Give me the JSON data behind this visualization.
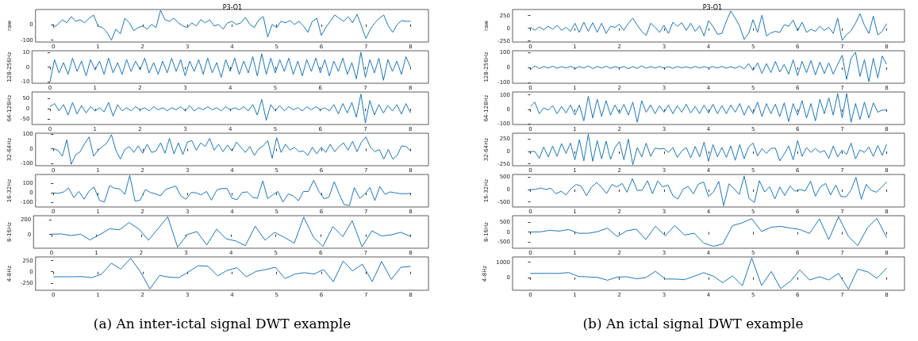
{
  "chart_data": [
    {
      "type": "line",
      "title": "P3-O1",
      "ylabel": "raw",
      "color": "#1f77b4",
      "xlim": [
        -0.4,
        8.4
      ],
      "xticks": [
        0,
        1,
        2,
        3,
        4,
        5,
        6,
        7,
        8
      ],
      "ylim": [
        -112,
        95
      ],
      "yticks": [
        -100,
        0
      ],
      "x": [
        0,
        0.1,
        0.2,
        0.3,
        0.4,
        0.5,
        0.6,
        0.7,
        0.8,
        0.9,
        1,
        1.1,
        1.2,
        1.3,
        1.4,
        1.5,
        1.6,
        1.7,
        1.8,
        1.9,
        2,
        2.1,
        2.2,
        2.3,
        2.4,
        2.5,
        2.6,
        2.7,
        2.8,
        2.9,
        3,
        3.1,
        3.2,
        3.3,
        3.4,
        3.5,
        3.6,
        3.7,
        3.8,
        3.9,
        4,
        4.1,
        4.2,
        4.3,
        4.4,
        4.5,
        4.6,
        4.7,
        4.8,
        4.9,
        5,
        5.1,
        5.2,
        5.3,
        5.4,
        5.5,
        5.6,
        5.7,
        5.8,
        5.9,
        6,
        6.1,
        6.2,
        6.3,
        6.4,
        6.5,
        6.6,
        6.7,
        6.8,
        6.9,
        7,
        7.1,
        7.2,
        7.3,
        7.4,
        7.5,
        7.6,
        7.7,
        7.8,
        7.9,
        8
      ],
      "values": [
        -20,
        0,
        30,
        10,
        50,
        20,
        30,
        10,
        40,
        60,
        -10,
        -20,
        -50,
        -100,
        -30,
        -60,
        40,
        10,
        -40,
        -20,
        -10,
        -30,
        0,
        -20,
        90,
        30,
        20,
        40,
        10,
        -10,
        -20,
        10,
        -10,
        30,
        10,
        30,
        -10,
        0,
        -30,
        10,
        20,
        0,
        10,
        45,
        0,
        -20,
        30,
        50,
        -80,
        0,
        -20,
        20,
        10,
        25,
        0,
        20,
        -10,
        -50,
        20,
        40,
        -70,
        -20,
        20,
        60,
        40,
        20,
        50,
        10,
        65,
        -10,
        -90,
        -30,
        10,
        40,
        60,
        -10,
        -50,
        0,
        25,
        20,
        20
      ]
    },
    {
      "type": "line",
      "ylabel": "128-256Hz",
      "color": "#1f77b4",
      "xlim": [
        -0.4,
        8.4
      ],
      "xticks": [
        0,
        1,
        2,
        3,
        4,
        5,
        6,
        7,
        8
      ],
      "ylim": [
        -11,
        11
      ],
      "yticks": [
        -10,
        0,
        10
      ],
      "x": [
        0,
        0.1,
        0.2,
        0.3,
        0.4,
        0.5,
        0.6,
        0.7,
        0.8,
        0.9,
        1,
        1.1,
        1.2,
        1.3,
        1.4,
        1.5,
        1.6,
        1.7,
        1.8,
        1.9,
        2,
        2.1,
        2.2,
        2.3,
        2.4,
        2.5,
        2.6,
        2.7,
        2.8,
        2.9,
        3,
        3.1,
        3.2,
        3.3,
        3.4,
        3.5,
        3.6,
        3.7,
        3.8,
        3.9,
        4,
        4.1,
        4.2,
        4.3,
        4.4,
        4.5,
        4.6,
        4.7,
        4.8,
        4.9,
        5,
        5.1,
        5.2,
        5.3,
        5.4,
        5.5,
        5.6,
        5.7,
        5.8,
        5.9,
        6,
        6.1,
        6.2,
        6.3,
        6.4,
        6.5,
        6.6,
        6.7,
        6.8,
        6.9,
        7,
        7.1,
        7.2,
        7.3,
        7.4,
        7.5,
        7.6,
        7.7,
        7.8,
        7.9,
        8
      ],
      "values": [
        -10,
        5,
        -4,
        3,
        -5,
        6,
        -3,
        4,
        -6,
        5,
        -2,
        4,
        -5,
        6,
        -4,
        3,
        -5,
        5,
        -3,
        4,
        -2,
        6,
        -4,
        3,
        -5,
        4,
        -4,
        6,
        -3,
        5,
        -6,
        4,
        -3,
        5,
        -5,
        6,
        -4,
        3,
        -7,
        5,
        -3,
        6,
        -5,
        4,
        -4,
        7,
        -6,
        9,
        -5,
        6,
        -4,
        5,
        -3,
        6,
        -5,
        4,
        -6,
        5,
        -3,
        6,
        -4,
        5,
        -6,
        4,
        -3,
        6,
        -5,
        3,
        -8,
        10,
        -7,
        5,
        -4,
        6,
        -9,
        5,
        -3,
        4,
        -5,
        7,
        0
      ]
    },
    {
      "type": "line",
      "ylabel": "64-128Hz",
      "color": "#1f77b4",
      "xlim": [
        -0.4,
        8.4
      ],
      "xticks": [
        0,
        1,
        2,
        3,
        4,
        5,
        6,
        7,
        8
      ],
      "ylim": [
        -75,
        80
      ],
      "yticks": [
        -50,
        0,
        50
      ],
      "x": [
        0,
        0.1,
        0.2,
        0.3,
        0.4,
        0.5,
        0.6,
        0.7,
        0.8,
        0.9,
        1,
        1.1,
        1.2,
        1.3,
        1.4,
        1.5,
        1.6,
        1.7,
        1.8,
        1.9,
        2,
        2.1,
        2.2,
        2.3,
        2.4,
        2.5,
        2.6,
        2.7,
        2.8,
        2.9,
        3,
        3.1,
        3.2,
        3.3,
        3.4,
        3.5,
        3.6,
        3.7,
        3.8,
        3.9,
        4,
        4.1,
        4.2,
        4.3,
        4.4,
        4.5,
        4.6,
        4.7,
        4.8,
        4.9,
        5,
        5.1,
        5.2,
        5.3,
        5.4,
        5.5,
        5.6,
        5.7,
        5.8,
        5.9,
        6,
        6.1,
        6.2,
        6.3,
        6.4,
        6.5,
        6.6,
        6.7,
        6.8,
        6.9,
        7,
        7.1,
        7.2,
        7.3,
        7.4,
        7.5,
        7.6,
        7.7,
        7.8,
        7.9,
        8
      ],
      "values": [
        10,
        25,
        -10,
        20,
        -30,
        30,
        -25,
        15,
        -20,
        10,
        -10,
        5,
        -15,
        30,
        -35,
        20,
        -10,
        5,
        -10,
        10,
        -5,
        5,
        -10,
        10,
        -5,
        5,
        -10,
        5,
        -5,
        10,
        -10,
        15,
        -10,
        5,
        -5,
        10,
        -5,
        5,
        -10,
        10,
        -5,
        5,
        -5,
        10,
        -10,
        20,
        -30,
        45,
        -55,
        20,
        -10,
        15,
        -10,
        10,
        -5,
        5,
        -10,
        10,
        -5,
        10,
        -5,
        5,
        -10,
        20,
        -25,
        25,
        -20,
        30,
        -40,
        70,
        -68,
        40,
        -30,
        20,
        -20,
        15,
        -10,
        20,
        -25,
        25,
        -20
      ]
    },
    {
      "type": "line",
      "ylabel": "32-64Hz",
      "color": "#1f77b4",
      "xlim": [
        -0.4,
        8.4
      ],
      "xticks": [
        0,
        1,
        2,
        3,
        4,
        5,
        6,
        7,
        8
      ],
      "ylim": [
        -115,
        105
      ],
      "yticks": [
        -100,
        0,
        100
      ],
      "x": [
        0,
        0.1,
        0.2,
        0.3,
        0.4,
        0.5,
        0.6,
        0.7,
        0.8,
        0.9,
        1,
        1.1,
        1.2,
        1.3,
        1.4,
        1.5,
        1.6,
        1.7,
        1.8,
        1.9,
        2,
        2.1,
        2.2,
        2.3,
        2.4,
        2.5,
        2.6,
        2.7,
        2.8,
        2.9,
        3,
        3.1,
        3.2,
        3.3,
        3.4,
        3.5,
        3.6,
        3.7,
        3.8,
        3.9,
        4,
        4.1,
        4.2,
        4.3,
        4.4,
        4.5,
        4.6,
        4.7,
        4.8,
        4.9,
        5,
        5.1,
        5.2,
        5.3,
        5.4,
        5.5,
        5.6,
        5.7,
        5.8,
        5.9,
        6,
        6.1,
        6.2,
        6.3,
        6.4,
        6.5,
        6.6,
        6.7,
        6.8,
        6.9,
        7,
        7.1,
        7.2,
        7.3,
        7.4,
        7.5,
        7.6,
        7.7,
        7.8,
        7.9,
        8
      ],
      "values": [
        0,
        -10,
        -50,
        60,
        -105,
        -40,
        -20,
        35,
        80,
        -50,
        -10,
        15,
        40,
        95,
        -10,
        -70,
        -5,
        15,
        -25,
        20,
        -30,
        30,
        -25,
        -15,
        40,
        -30,
        70,
        -35,
        40,
        -40,
        45,
        55,
        -10,
        40,
        15,
        70,
        -10,
        30,
        -20,
        25,
        -15,
        45,
        10,
        -25,
        15,
        -45,
        0,
        20,
        55,
        -65,
        75,
        -25,
        30,
        -10,
        10,
        -20,
        -15,
        -45,
        10,
        -35,
        10,
        -25,
        30,
        -20,
        15,
        40,
        -10,
        50,
        -20,
        45,
        80,
        10,
        -20,
        -5,
        -70,
        -5,
        -70,
        -45,
        20,
        15,
        -15
      ]
    },
    {
      "type": "line",
      "ylabel": "16-32Hz",
      "color": "#1f77b4",
      "xlim": [
        -0.4,
        8.4
      ],
      "xticks": [
        0,
        1,
        2,
        3,
        4,
        5,
        6,
        7,
        8
      ],
      "ylim": [
        -145,
        190
      ],
      "yticks": [
        -100,
        0,
        100
      ],
      "x": [
        0,
        0.11,
        0.23,
        0.34,
        0.46,
        0.57,
        0.69,
        0.8,
        0.91,
        1.03,
        1.14,
        1.26,
        1.37,
        1.49,
        1.6,
        1.71,
        1.83,
        1.94,
        2.06,
        2.17,
        2.29,
        2.4,
        2.51,
        2.63,
        2.74,
        2.86,
        2.97,
        3.09,
        3.2,
        3.31,
        3.43,
        3.54,
        3.66,
        3.77,
        3.89,
        4,
        4.11,
        4.23,
        4.34,
        4.46,
        4.57,
        4.69,
        4.8,
        4.91,
        5.03,
        5.14,
        5.26,
        5.37,
        5.49,
        5.6,
        5.71,
        5.83,
        5.94,
        6.06,
        6.17,
        6.29,
        6.4,
        6.51,
        6.63,
        6.74,
        6.86,
        6.97,
        7.09,
        7.2,
        7.31,
        7.43,
        7.54,
        7.66,
        7.77,
        7.89,
        8
      ],
      "values": [
        0,
        -5,
        10,
        50,
        -50,
        15,
        -65,
        20,
        60,
        -75,
        -95,
        75,
        48,
        40,
        -15,
        180,
        -85,
        -75,
        35,
        5,
        -10,
        -30,
        35,
        55,
        70,
        -35,
        -65,
        5,
        0,
        -20,
        15,
        -75,
        30,
        45,
        45,
        -55,
        -70,
        5,
        10,
        -45,
        -55,
        125,
        -60,
        -20,
        15,
        -95,
        -10,
        -30,
        -80,
        15,
        15,
        130,
        20,
        -60,
        -45,
        115,
        -10,
        -120,
        -130,
        55,
        -55,
        -15,
        55,
        -80,
        65,
        -15,
        10,
        0,
        -8,
        -8,
        -5
      ]
    },
    {
      "type": "line",
      "ylabel": "8-16Hz",
      "color": "#1f77b4",
      "xlim": [
        -0.4,
        8.4
      ],
      "xticks": [
        0,
        1,
        2,
        3,
        4,
        5,
        6,
        7,
        8
      ],
      "ylim": [
        -190,
        260
      ],
      "yticks": [
        0,
        200
      ],
      "x": [
        0,
        0.22,
        0.43,
        0.65,
        0.86,
        1.08,
        1.3,
        1.51,
        1.73,
        1.95,
        2.16,
        2.38,
        2.59,
        2.81,
        3.03,
        3.24,
        3.46,
        3.68,
        3.89,
        4.11,
        4.32,
        4.54,
        4.76,
        4.97,
        5.19,
        5.41,
        5.62,
        5.84,
        6.05,
        6.27,
        6.49,
        6.7,
        6.92,
        7.14,
        7.35,
        7.57,
        7.78,
        8
      ],
      "values": [
        5,
        8,
        -15,
        3,
        -75,
        0,
        80,
        65,
        165,
        75,
        -80,
        85,
        245,
        -175,
        0,
        40,
        -145,
        75,
        -60,
        -90,
        -155,
        115,
        -80,
        30,
        -40,
        -120,
        240,
        -40,
        -165,
        110,
        -30,
        190,
        -170,
        50,
        -20,
        -5,
        30,
        -25
      ]
    },
    {
      "type": "line",
      "ylabel": "4-8Hz",
      "color": "#1f77b4",
      "xlim": [
        -0.4,
        8.4
      ],
      "xticks": [
        0,
        1,
        2,
        3,
        4,
        5,
        6,
        7,
        8
      ],
      "ylim": [
        -410,
        330
      ],
      "yticks": [
        -250,
        0,
        250
      ],
      "annotations": [
        "(a) An inter-ictal signal DWT example"
      ],
      "x": [
        0,
        0.22,
        0.43,
        0.65,
        0.86,
        1.08,
        1.3,
        1.51,
        1.73,
        1.95,
        2.16,
        2.38,
        2.59,
        2.81,
        3.03,
        3.24,
        3.46,
        3.68,
        3.89,
        4.11,
        4.32,
        4.54,
        4.76,
        4.97,
        5.19,
        5.41,
        5.62,
        5.84,
        6.05,
        6.27,
        6.49,
        6.7,
        6.92,
        7.14,
        7.35,
        7.57,
        7.78,
        8
      ],
      "values": [
        -110,
        -110,
        -110,
        -108,
        -130,
        -50,
        190,
        60,
        300,
        0,
        -380,
        -80,
        -120,
        -130,
        0,
        135,
        125,
        -90,
        30,
        90,
        -110,
        10,
        50,
        100,
        -150,
        -50,
        -20,
        -50,
        50,
        -220,
        240,
        20,
        170,
        -220,
        230,
        -170,
        100,
        120
      ]
    },
    {
      "type": "line",
      "title": "P3-O1",
      "ylabel": "raw",
      "color": "#1f77b4",
      "xlim": [
        -0.4,
        8.4
      ],
      "xticks": [
        0,
        1,
        2,
        3,
        4,
        5,
        6,
        7,
        8
      ],
      "ylim": [
        -270,
        370
      ],
      "yticks": [
        -250,
        0,
        250
      ],
      "x": [
        0,
        0.1,
        0.2,
        0.3,
        0.4,
        0.5,
        0.6,
        0.7,
        0.8,
        0.9,
        1,
        1.1,
        1.2,
        1.3,
        1.4,
        1.5,
        1.6,
        1.7,
        1.8,
        1.9,
        2,
        2.1,
        2.2,
        2.3,
        2.4,
        2.5,
        2.6,
        2.7,
        2.8,
        2.9,
        3,
        3.1,
        3.2,
        3.3,
        3.4,
        3.5,
        3.6,
        3.7,
        3.8,
        3.9,
        4,
        4.1,
        4.2,
        4.3,
        4.4,
        4.5,
        4.6,
        4.7,
        4.8,
        4.9,
        5,
        5.1,
        5.2,
        5.3,
        5.4,
        5.5,
        5.6,
        5.7,
        5.8,
        5.9,
        6,
        6.1,
        6.2,
        6.3,
        6.4,
        6.5,
        6.6,
        6.7,
        6.8,
        6.9,
        7,
        7.1,
        7.2,
        7.3,
        7.4,
        7.5,
        7.6,
        7.7,
        7.8,
        7.9,
        8
      ],
      "values": [
        20,
        -40,
        30,
        -30,
        40,
        -20,
        60,
        -40,
        20,
        -60,
        100,
        -80,
        120,
        -60,
        110,
        -80,
        100,
        -100,
        40,
        20,
        80,
        -40,
        100,
        200,
        60,
        -60,
        -140,
        100,
        20,
        -80,
        60,
        -100,
        120,
        40,
        110,
        -40,
        100,
        -60,
        50,
        -150,
        150,
        40,
        -120,
        -100,
        140,
        340,
        200,
        40,
        -220,
        -100,
        170,
        -80,
        260,
        -150,
        -90,
        -60,
        -80,
        70,
        40,
        160,
        -50,
        120,
        -80,
        -20,
        -60,
        40,
        -40,
        20,
        -100,
        200,
        -240,
        -120,
        -50,
        100,
        290,
        60,
        -100,
        240,
        -130,
        -60,
        90
      ]
    },
    {
      "type": "line",
      "ylabel": "128-256Hz",
      "color": "#1f77b4",
      "xlim": [
        -0.4,
        8.4
      ],
      "xticks": [
        0,
        1,
        2,
        3,
        4,
        5,
        6,
        7,
        8
      ],
      "ylim": [
        -105,
        110
      ],
      "yticks": [
        -100,
        0,
        100
      ],
      "x": [
        0,
        0.1,
        0.2,
        0.3,
        0.4,
        0.5,
        0.6,
        0.7,
        0.8,
        0.9,
        1,
        1.1,
        1.2,
        1.3,
        1.4,
        1.5,
        1.6,
        1.7,
        1.8,
        1.9,
        2,
        2.1,
        2.2,
        2.3,
        2.4,
        2.5,
        2.6,
        2.7,
        2.8,
        2.9,
        3,
        3.1,
        3.2,
        3.3,
        3.4,
        3.5,
        3.6,
        3.7,
        3.8,
        3.9,
        4,
        4.1,
        4.2,
        4.3,
        4.4,
        4.5,
        4.6,
        4.7,
        4.8,
        4.9,
        5,
        5.1,
        5.2,
        5.3,
        5.4,
        5.5,
        5.6,
        5.7,
        5.8,
        5.9,
        6,
        6.1,
        6.2,
        6.3,
        6.4,
        6.5,
        6.6,
        6.7,
        6.8,
        6.9,
        7,
        7.1,
        7.2,
        7.3,
        7.4,
        7.5,
        7.6,
        7.7,
        7.8,
        7.9,
        8
      ],
      "values": [
        -15,
        10,
        -8,
        6,
        -5,
        8,
        -6,
        5,
        -4,
        7,
        -8,
        6,
        -5,
        10,
        -8,
        6,
        -5,
        8,
        -6,
        5,
        -4,
        6,
        -8,
        5,
        -7,
        10,
        -6,
        5,
        -4,
        6,
        -5,
        4,
        -6,
        5,
        -3,
        4,
        -5,
        6,
        -4,
        5,
        -3,
        5,
        -4,
        6,
        -5,
        4,
        -6,
        8,
        -10,
        25,
        -20,
        30,
        -40,
        25,
        -35,
        40,
        -30,
        20,
        -45,
        50,
        -55,
        40,
        -35,
        45,
        -50,
        35,
        -40,
        30,
        -45,
        20,
        80,
        -80,
        60,
        100,
        -60,
        50,
        -95,
        60,
        -70,
        75,
        20
      ]
    },
    {
      "type": "line",
      "ylabel": "64-128Hz",
      "color": "#1f77b4",
      "xlim": [
        -0.4,
        8.4
      ],
      "xticks": [
        0,
        1,
        2,
        3,
        4,
        5,
        6,
        7,
        8
      ],
      "ylim": [
        -105,
        120
      ],
      "yticks": [
        -100,
        0,
        100
      ],
      "x": [
        0,
        0.1,
        0.2,
        0.3,
        0.4,
        0.5,
        0.6,
        0.7,
        0.8,
        0.9,
        1,
        1.1,
        1.2,
        1.3,
        1.4,
        1.5,
        1.6,
        1.7,
        1.8,
        1.9,
        2,
        2.1,
        2.2,
        2.3,
        2.4,
        2.5,
        2.6,
        2.7,
        2.8,
        2.9,
        3,
        3.1,
        3.2,
        3.3,
        3.4,
        3.5,
        3.6,
        3.7,
        3.8,
        3.9,
        4,
        4.1,
        4.2,
        4.3,
        4.4,
        4.5,
        4.6,
        4.7,
        4.8,
        4.9,
        5,
        5.1,
        5.2,
        5.3,
        5.4,
        5.5,
        5.6,
        5.7,
        5.8,
        5.9,
        6,
        6.1,
        6.2,
        6.3,
        6.4,
        6.5,
        6.6,
        6.7,
        6.8,
        6.9,
        7,
        7.1,
        7.2,
        7.3,
        7.4,
        7.5,
        7.6,
        7.7,
        7.8,
        7.9,
        8
      ],
      "values": [
        20,
        50,
        -30,
        10,
        -5,
        25,
        -30,
        20,
        -25,
        30,
        -40,
        30,
        -80,
        90,
        -60,
        70,
        -50,
        60,
        -40,
        30,
        -30,
        35,
        -40,
        50,
        -90,
        60,
        -20,
        30,
        -30,
        25,
        -20,
        30,
        -30,
        25,
        -20,
        35,
        -25,
        20,
        -30,
        30,
        -25,
        35,
        -30,
        25,
        -30,
        30,
        -20,
        40,
        -40,
        25,
        -30,
        50,
        -50,
        40,
        -30,
        35,
        -50,
        45,
        -85,
        40,
        -40,
        60,
        -60,
        40,
        -80,
        70,
        -30,
        80,
        -40,
        110,
        -60,
        110,
        -90,
        40,
        -70,
        50,
        -60,
        45,
        -20,
        -5,
        -5
      ]
    },
    {
      "type": "line",
      "ylabel": "32-64Hz",
      "color": "#1f77b4",
      "xlim": [
        -0.4,
        8.4
      ],
      "xticks": [
        0,
        1,
        2,
        3,
        4,
        5,
        6,
        7,
        8
      ],
      "ylim": [
        -290,
        370
      ],
      "yticks": [
        -250,
        0,
        250
      ],
      "x": [
        0,
        0.1,
        0.2,
        0.3,
        0.4,
        0.5,
        0.6,
        0.7,
        0.8,
        0.9,
        1,
        1.1,
        1.2,
        1.3,
        1.4,
        1.5,
        1.6,
        1.7,
        1.8,
        1.9,
        2,
        2.1,
        2.2,
        2.3,
        2.4,
        2.5,
        2.6,
        2.7,
        2.8,
        2.9,
        3,
        3.1,
        3.2,
        3.3,
        3.4,
        3.5,
        3.6,
        3.7,
        3.8,
        3.9,
        4,
        4.1,
        4.2,
        4.3,
        4.4,
        4.5,
        4.6,
        4.7,
        4.8,
        4.9,
        5,
        5.1,
        5.2,
        5.3,
        5.4,
        5.5,
        5.6,
        5.7,
        5.8,
        5.9,
        6,
        6.1,
        6.2,
        6.3,
        6.4,
        6.5,
        6.6,
        6.7,
        6.8,
        6.9,
        7,
        7.1,
        7.2,
        7.3,
        7.4,
        7.5,
        7.6,
        7.7,
        7.8,
        7.9,
        8
      ],
      "values": [
        0,
        0,
        -140,
        90,
        -110,
        110,
        -100,
        160,
        -40,
        170,
        -170,
        240,
        -190,
        350,
        -200,
        220,
        -150,
        210,
        -160,
        80,
        200,
        -170,
        250,
        -270,
        80,
        -110,
        170,
        -100,
        70,
        50,
        60,
        -20,
        80,
        -120,
        10,
        80,
        -130,
        100,
        -110,
        190,
        -200,
        140,
        -110,
        80,
        -120,
        110,
        -180,
        140,
        -150,
        90,
        170,
        -90,
        60,
        -40,
        60,
        70,
        -190,
        -50,
        110,
        -170,
        220,
        -100,
        80,
        -20,
        60,
        -20,
        20,
        -140,
        110,
        -110,
        30,
        -60,
        170,
        -150,
        30,
        -20,
        90,
        -100,
        120,
        -80,
        150
      ]
    },
    {
      "type": "line",
      "ylabel": "16-32Hz",
      "color": "#1f77b4",
      "xlim": [
        -0.4,
        8.4
      ],
      "xticks": [
        0,
        1,
        2,
        3,
        4,
        5,
        6,
        7,
        8
      ],
      "ylim": [
        -700,
        600
      ],
      "yticks": [
        -500,
        0,
        500
      ],
      "x": [
        0,
        0.11,
        0.23,
        0.34,
        0.46,
        0.57,
        0.69,
        0.8,
        0.91,
        1.03,
        1.14,
        1.26,
        1.37,
        1.49,
        1.6,
        1.71,
        1.83,
        1.94,
        2.06,
        2.17,
        2.29,
        2.4,
        2.51,
        2.63,
        2.74,
        2.86,
        2.97,
        3.09,
        3.2,
        3.31,
        3.43,
        3.54,
        3.66,
        3.77,
        3.89,
        4,
        4.11,
        4.23,
        4.34,
        4.46,
        4.57,
        4.69,
        4.8,
        4.91,
        5.03,
        5.14,
        5.26,
        5.37,
        5.49,
        5.6,
        5.71,
        5.83,
        5.94,
        6.06,
        6.17,
        6.29,
        6.4,
        6.51,
        6.63,
        6.74,
        6.86,
        6.97,
        7.09,
        7.2,
        7.31,
        7.43,
        7.54,
        7.66,
        7.77,
        7.89,
        8
      ],
      "values": [
        0,
        0,
        60,
        0,
        50,
        -170,
        -70,
        -220,
        30,
        200,
        140,
        -250,
        90,
        280,
        80,
        -160,
        200,
        100,
        240,
        -110,
        430,
        -40,
        -30,
        350,
        -170,
        340,
        100,
        180,
        -250,
        -380,
        10,
        120,
        -170,
        210,
        300,
        -280,
        -100,
        320,
        -650,
        230,
        30,
        -200,
        540,
        -360,
        -520,
        350,
        -100,
        110,
        -380,
        100,
        -240,
        140,
        -70,
        0,
        -60,
        330,
        -270,
        100,
        240,
        -220,
        180,
        -280,
        -290,
        -20,
        490,
        -390,
        200,
        -40,
        -110,
        100,
        300
      ]
    },
    {
      "type": "line",
      "ylabel": "8-16Hz",
      "color": "#1f77b4",
      "xlim": [
        -0.4,
        8.4
      ],
      "xticks": [
        0,
        1,
        2,
        3,
        4,
        5,
        6,
        7,
        8
      ],
      "ylim": [
        -820,
        830
      ],
      "yticks": [
        -500,
        0,
        500
      ],
      "x": [
        0,
        0.22,
        0.43,
        0.65,
        0.86,
        1.08,
        1.3,
        1.51,
        1.73,
        1.95,
        2.16,
        2.38,
        2.59,
        2.81,
        3.03,
        3.24,
        3.46,
        3.68,
        3.89,
        4.11,
        4.32,
        4.54,
        4.76,
        4.97,
        5.19,
        5.41,
        5.62,
        5.84,
        6.05,
        6.27,
        6.49,
        6.7,
        6.92,
        7.14,
        7.35,
        7.57,
        7.78,
        8
      ],
      "values": [
        0,
        10,
        90,
        50,
        130,
        -60,
        -60,
        20,
        200,
        -230,
        60,
        150,
        -380,
        290,
        -190,
        330,
        -150,
        -60,
        -560,
        -720,
        -600,
        330,
        470,
        680,
        30,
        250,
        290,
        200,
        130,
        -70,
        670,
        -380,
        780,
        -220,
        -690,
        230,
        690,
        -280
      ]
    },
    {
      "type": "line",
      "ylabel": "4-8Hz",
      "color": "#1f77b4",
      "xlim": [
        -0.4,
        8.4
      ],
      "xticks": [
        0,
        1,
        2,
        3,
        4,
        5,
        6,
        7,
        8
      ],
      "ylim": [
        -850,
        1350
      ],
      "yticks": [
        0,
        1000
      ],
      "annotations": [
        "(b) An ictal signal DWT example"
      ],
      "x": [
        0,
        0.22,
        0.43,
        0.65,
        0.86,
        1.08,
        1.3,
        1.51,
        1.73,
        1.95,
        2.16,
        2.38,
        2.59,
        2.81,
        3.03,
        3.24,
        3.46,
        3.68,
        3.89,
        4.11,
        4.32,
        4.54,
        4.76,
        4.97,
        5.19,
        5.41,
        5.62,
        5.84,
        6.05,
        6.27,
        6.49,
        6.7,
        6.92,
        7.14,
        7.35,
        7.57,
        7.78,
        8
      ],
      "values": [
        260,
        265,
        265,
        262,
        320,
        60,
        30,
        0,
        -190,
        20,
        40,
        -90,
        -20,
        400,
        -110,
        -110,
        -150,
        80,
        310,
        80,
        -350,
        100,
        -550,
        1280,
        -530,
        390,
        -740,
        -250,
        500,
        -170,
        40,
        -170,
        270,
        -780,
        540,
        370,
        -60,
        620
      ]
    }
  ]
}
